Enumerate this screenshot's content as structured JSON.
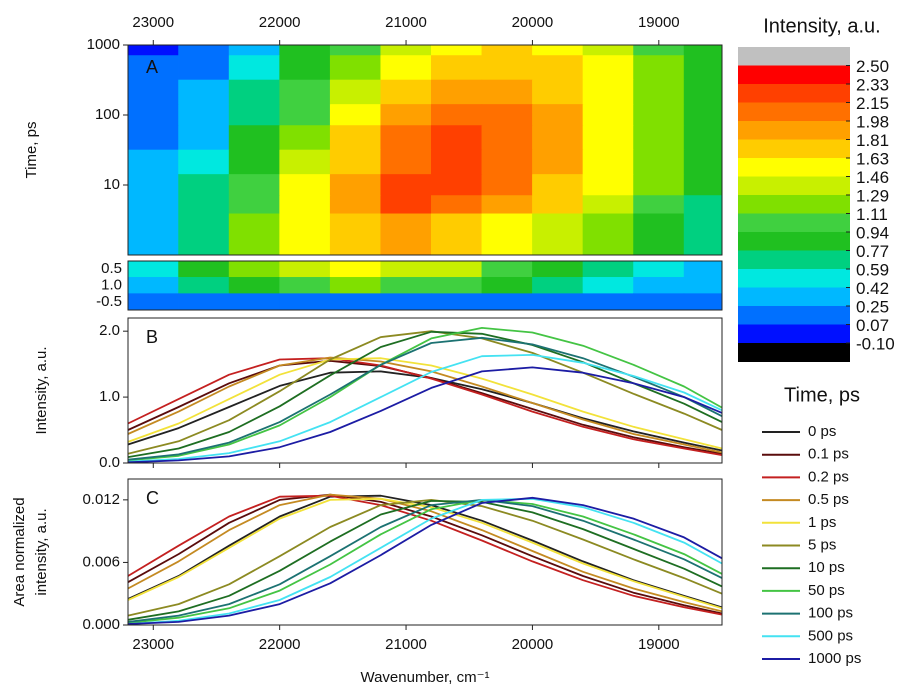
{
  "chart_data": [
    {
      "type": "contour",
      "panel_label": "A",
      "ylabel": "Time, ps",
      "x": [
        23000,
        22600,
        22200,
        21800,
        21400,
        21000,
        20600,
        20200,
        19800,
        19400,
        19000,
        18600
      ],
      "y": [
        1000,
        500,
        200,
        100,
        50,
        20,
        10,
        5,
        3
      ],
      "z": [
        [
          0.05,
          0.15,
          0.4,
          0.8,
          1.1,
          1.4,
          1.6,
          1.7,
          1.6,
          1.4,
          1.1,
          0.8
        ],
        [
          0.08,
          0.2,
          0.5,
          0.9,
          1.2,
          1.5,
          1.7,
          1.8,
          1.7,
          1.5,
          1.2,
          0.9
        ],
        [
          0.1,
          0.25,
          0.6,
          1.0,
          1.4,
          1.7,
          1.9,
          1.95,
          1.8,
          1.55,
          1.25,
          0.9
        ],
        [
          0.15,
          0.3,
          0.7,
          1.1,
          1.5,
          1.9,
          2.05,
          2.05,
          1.9,
          1.6,
          1.25,
          0.9
        ],
        [
          0.2,
          0.4,
          0.8,
          1.2,
          1.7,
          2.0,
          2.15,
          2.1,
          1.9,
          1.6,
          1.25,
          0.9
        ],
        [
          0.25,
          0.5,
          0.9,
          1.4,
          1.8,
          2.1,
          2.2,
          2.1,
          1.85,
          1.55,
          1.2,
          0.85
        ],
        [
          0.3,
          0.6,
          1.0,
          1.5,
          1.9,
          2.2,
          2.2,
          2.0,
          1.8,
          1.5,
          1.15,
          0.8
        ],
        [
          0.35,
          0.7,
          1.1,
          1.55,
          1.95,
          2.15,
          2.1,
          1.9,
          1.65,
          1.35,
          1.05,
          0.75
        ],
        [
          0.4,
          0.75,
          1.15,
          1.5,
          1.8,
          1.9,
          1.8,
          1.6,
          1.4,
          1.15,
          0.9,
          0.6
        ]
      ],
      "lower_rows": [
        "0.5",
        "1.0",
        "-0.5"
      ],
      "lower_z": [
        [
          0.5,
          0.8,
          1.2,
          1.4,
          1.5,
          1.4,
          1.3,
          1.1,
          0.9,
          0.7,
          0.5,
          0.4
        ],
        [
          0.4,
          0.6,
          0.9,
          1.1,
          1.2,
          1.1,
          1.0,
          0.9,
          0.7,
          0.55,
          0.4,
          0.3
        ],
        [
          0.1,
          0.1,
          0.15,
          0.15,
          0.15,
          0.15,
          0.1,
          0.1,
          0.1,
          0.1,
          0.1,
          0.1
        ]
      ],
      "xlim": [
        23200,
        18500
      ],
      "xticks": [
        23000,
        22000,
        21000,
        20000,
        19000
      ],
      "ylim": [
        1,
        1000
      ],
      "yticks": [
        10,
        100,
        1000
      ],
      "log_y": true,
      "colorbar": {
        "title": "Intensity, a.u.",
        "levels": [
          {
            "value": 2.5,
            "label": "2.50"
          },
          {
            "value": 2.33,
            "label": "2.33"
          },
          {
            "value": 2.15,
            "label": "2.15"
          },
          {
            "value": 1.98,
            "label": "1.98"
          },
          {
            "value": 1.81,
            "label": "1.81"
          },
          {
            "value": 1.63,
            "label": "1.63"
          },
          {
            "value": 1.46,
            "label": "1.46"
          },
          {
            "value": 1.29,
            "label": "1.29"
          },
          {
            "value": 1.11,
            "label": "1.11"
          },
          {
            "value": 0.94,
            "label": "0.94"
          },
          {
            "value": 0.77,
            "label": "0.77"
          },
          {
            "value": 0.59,
            "label": "0.59"
          },
          {
            "value": 0.42,
            "label": "0.42"
          },
          {
            "value": 0.25,
            "label": "0.25"
          },
          {
            "value": 0.07,
            "label": "0.07"
          },
          {
            "value": -0.1,
            "label": "-0.10"
          }
        ],
        "colors": [
          "#c0c0c0",
          "#ff0000",
          "#ff4000",
          "#ff7000",
          "#ffa000",
          "#ffcc00",
          "#ffff00",
          "#c8f000",
          "#80e000",
          "#40d040",
          "#20c020",
          "#00d080",
          "#00e8e0",
          "#00b8ff",
          "#0070ff",
          "#0010ff",
          "#000000"
        ]
      }
    },
    {
      "type": "line",
      "panel_label": "B",
      "ylabel": "Intensity, a.u.",
      "x": [
        23200,
        22800,
        22400,
        22000,
        21600,
        21200,
        20800,
        20400,
        20000,
        19600,
        19200,
        18800,
        18500
      ],
      "xlim": [
        23200,
        18500
      ],
      "xticks": [
        23000,
        22000,
        21000,
        20000,
        19000
      ],
      "ylim": [
        0,
        2.2
      ],
      "yticks": [
        {
          "value": 0,
          "label": "0.0"
        },
        {
          "value": 1,
          "label": "1.0"
        },
        {
          "value": 2,
          "label": "2.0"
        }
      ],
      "legend": {
        "title": "Time, ps",
        "position": "right"
      },
      "series": [
        {
          "name": "0 ps",
          "color": "#222222",
          "values": [
            0.28,
            0.53,
            0.85,
            1.17,
            1.37,
            1.39,
            1.29,
            1.12,
            0.91,
            0.68,
            0.48,
            0.31,
            0.19
          ]
        },
        {
          "name": "0.1 ps",
          "color": "#5a0c0c",
          "values": [
            0.5,
            0.85,
            1.21,
            1.48,
            1.55,
            1.47,
            1.29,
            1.06,
            0.82,
            0.58,
            0.39,
            0.24,
            0.14
          ]
        },
        {
          "name": "0.2 ps",
          "color": "#c42020",
          "values": [
            0.6,
            0.97,
            1.34,
            1.57,
            1.59,
            1.48,
            1.28,
            1.04,
            0.78,
            0.55,
            0.36,
            0.22,
            0.12
          ]
        },
        {
          "name": "0.5 ps",
          "color": "#c48a22",
          "values": [
            0.44,
            0.78,
            1.16,
            1.48,
            1.6,
            1.54,
            1.39,
            1.16,
            0.91,
            0.66,
            0.44,
            0.28,
            0.16
          ]
        },
        {
          "name": "1 ps",
          "color": "#f2e23a",
          "values": [
            0.32,
            0.6,
            0.97,
            1.34,
            1.57,
            1.59,
            1.48,
            1.28,
            1.04,
            0.78,
            0.55,
            0.36,
            0.22
          ]
        },
        {
          "name": "5 ps",
          "color": "#8c8a22",
          "values": [
            0.14,
            0.33,
            0.65,
            1.09,
            1.57,
            1.91,
            2.0,
            1.89,
            1.67,
            1.37,
            1.05,
            0.75,
            0.5
          ]
        },
        {
          "name": "10 ps",
          "color": "#1e6e22",
          "values": [
            0.09,
            0.22,
            0.47,
            0.86,
            1.33,
            1.76,
            1.99,
            1.96,
            1.79,
            1.53,
            1.21,
            0.9,
            0.62
          ]
        },
        {
          "name": "50 ps",
          "color": "#44c444",
          "values": [
            0.04,
            0.11,
            0.28,
            0.57,
            1.0,
            1.49,
            1.89,
            2.05,
            1.98,
            1.78,
            1.49,
            1.16,
            0.84
          ]
        },
        {
          "name": "100 ps",
          "color": "#1c7272",
          "values": [
            0.05,
            0.13,
            0.31,
            0.62,
            1.04,
            1.49,
            1.82,
            1.9,
            1.8,
            1.59,
            1.31,
            1.0,
            0.71
          ]
        },
        {
          "name": "500 ps",
          "color": "#44e2f2",
          "values": [
            0.02,
            0.06,
            0.15,
            0.33,
            0.62,
            1.0,
            1.38,
            1.62,
            1.64,
            1.52,
            1.32,
            1.07,
            0.8
          ]
        },
        {
          "name": "1000 ps",
          "color": "#1c1ca4",
          "values": [
            0.01,
            0.04,
            0.1,
            0.24,
            0.47,
            0.79,
            1.14,
            1.39,
            1.45,
            1.37,
            1.21,
            1.0,
            0.76
          ]
        }
      ]
    },
    {
      "type": "line",
      "panel_label": "C",
      "ylabel": [
        "Area normalized",
        "intensity, a.u."
      ],
      "xlabel": "Wavenumber, cm⁻¹",
      "x": [
        23200,
        22800,
        22400,
        22000,
        21600,
        21200,
        20800,
        20400,
        20000,
        19600,
        19200,
        18800,
        18500
      ],
      "xlim": [
        23200,
        18500
      ],
      "xticks": [
        23000,
        22000,
        21000,
        20000,
        19000
      ],
      "ylim": [
        0,
        0.014
      ],
      "yticks": [
        {
          "value": 0,
          "label": "0.000"
        },
        {
          "value": 0.006,
          "label": "0.006"
        },
        {
          "value": 0.012,
          "label": "0.012"
        }
      ],
      "series": [
        {
          "color": "#222222",
          "values": [
            0.0025,
            0.0047,
            0.0076,
            0.0104,
            0.0123,
            0.0124,
            0.0115,
            0.01,
            0.0081,
            0.0061,
            0.0043,
            0.0028,
            0.0017
          ]
        },
        {
          "color": "#5a0c0c",
          "values": [
            0.0041,
            0.0068,
            0.0098,
            0.012,
            0.0125,
            0.0118,
            0.0104,
            0.0086,
            0.0066,
            0.0047,
            0.0031,
            0.0019,
            0.0011
          ]
        },
        {
          "color": "#c42020",
          "values": [
            0.0047,
            0.0076,
            0.0104,
            0.0123,
            0.0124,
            0.0115,
            0.01,
            0.0081,
            0.0061,
            0.0043,
            0.0028,
            0.0017,
            0.001
          ]
        },
        {
          "color": "#c48a22",
          "values": [
            0.0035,
            0.0061,
            0.0091,
            0.0115,
            0.0125,
            0.0121,
            0.0109,
            0.0091,
            0.0071,
            0.0051,
            0.0035,
            0.0022,
            0.0013
          ]
        },
        {
          "color": "#f2e23a",
          "values": [
            0.0024,
            0.0046,
            0.0074,
            0.0102,
            0.012,
            0.0121,
            0.0113,
            0.0098,
            0.0079,
            0.0059,
            0.0042,
            0.0027,
            0.0016
          ]
        },
        {
          "color": "#8c8a22",
          "values": [
            0.0009,
            0.002,
            0.0039,
            0.0066,
            0.0094,
            0.0115,
            0.012,
            0.0114,
            0.01,
            0.0082,
            0.0063,
            0.0045,
            0.003
          ]
        },
        {
          "color": "#1e6e22",
          "values": [
            0.0005,
            0.0013,
            0.0028,
            0.0052,
            0.008,
            0.0106,
            0.0119,
            0.0118,
            0.0108,
            0.0092,
            0.0073,
            0.0054,
            0.0037
          ]
        },
        {
          "color": "#44c444",
          "values": [
            0.0002,
            0.0007,
            0.0016,
            0.0033,
            0.0058,
            0.0087,
            0.0111,
            0.012,
            0.0116,
            0.0104,
            0.0087,
            0.0068,
            0.0049
          ]
        },
        {
          "color": "#1c7272",
          "values": [
            0.0003,
            0.0009,
            0.002,
            0.0039,
            0.0066,
            0.0094,
            0.0115,
            0.012,
            0.0114,
            0.01,
            0.0082,
            0.0063,
            0.0045
          ]
        },
        {
          "color": "#44e2f2",
          "values": [
            0.0001,
            0.0004,
            0.0011,
            0.0024,
            0.0046,
            0.0074,
            0.0102,
            0.012,
            0.0121,
            0.0113,
            0.0098,
            0.0079,
            0.0059
          ]
        },
        {
          "color": "#1c1ca4",
          "values": [
            0.0001,
            0.0003,
            0.0009,
            0.002,
            0.004,
            0.0067,
            0.0096,
            0.0117,
            0.0122,
            0.0115,
            0.0102,
            0.0084,
            0.0064
          ]
        }
      ]
    }
  ]
}
